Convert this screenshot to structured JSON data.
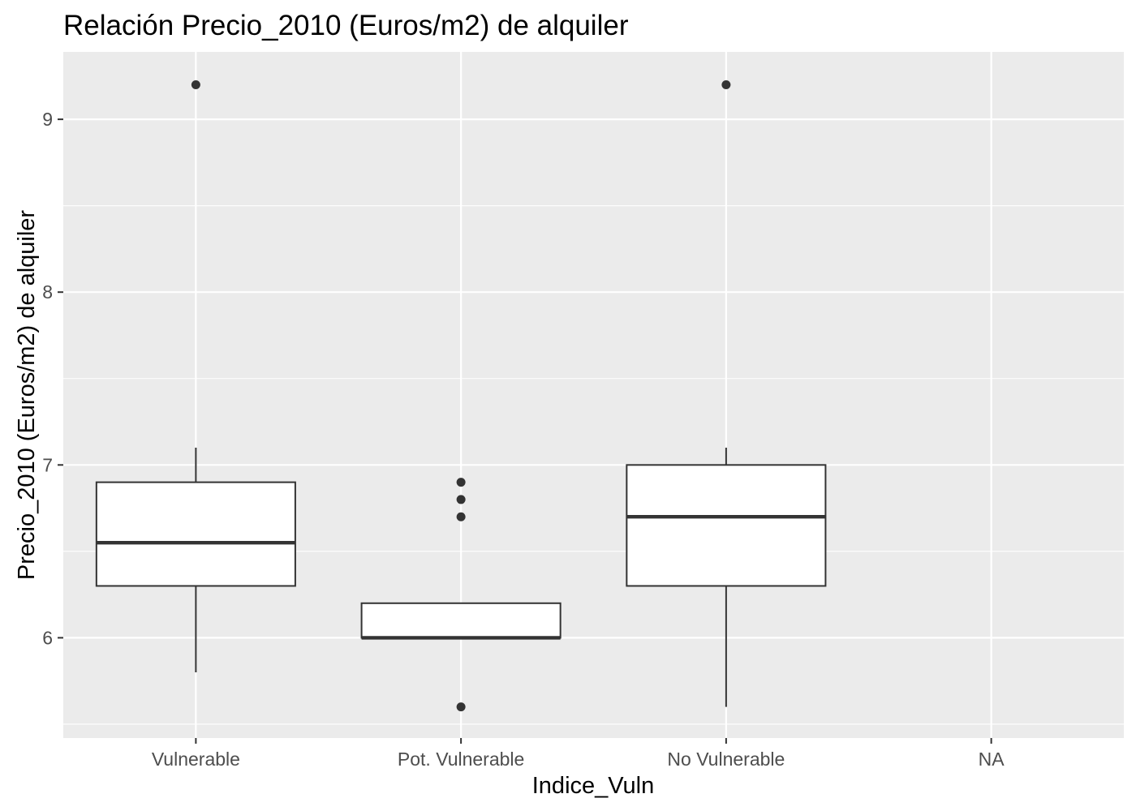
{
  "chart_data": {
    "type": "boxplot",
    "title": "Relación  Precio_2010 (Euros/m2) de alquiler",
    "xlabel": "Indice_Vuln",
    "ylabel": "Precio_2010 (Euros/m2) de alquiler",
    "categories": [
      "Vulnerable",
      "Pot. Vulnerable",
      "No Vulnerable",
      "NA"
    ],
    "y_ticks": [
      6,
      7,
      8,
      9
    ],
    "ylim": [
      5.42,
      9.39
    ],
    "grid": true,
    "boxes": [
      {
        "category": "Vulnerable",
        "whisker_low": 5.8,
        "q1": 6.3,
        "median": 6.55,
        "q3": 6.9,
        "whisker_high": 7.1,
        "outliers": [
          9.2
        ]
      },
      {
        "category": "Pot. Vulnerable",
        "whisker_low": 6.0,
        "q1": 6.0,
        "median": 6.0,
        "q3": 6.2,
        "whisker_high": 6.2,
        "outliers": [
          6.9,
          6.8,
          6.7,
          5.6
        ]
      },
      {
        "category": "No Vulnerable",
        "whisker_low": 5.6,
        "q1": 6.3,
        "median": 6.7,
        "q3": 7.0,
        "whisker_high": 7.1,
        "outliers": [
          9.2
        ]
      },
      {
        "category": "NA",
        "whisker_low": null,
        "q1": null,
        "median": null,
        "q3": null,
        "whisker_high": null,
        "outliers": []
      }
    ],
    "colors": {
      "panel": "#ebebeb",
      "grid": "#ffffff",
      "box_fill": "#ffffff",
      "box_stroke": "#333333",
      "tick_text": "#4d4d4d"
    }
  }
}
